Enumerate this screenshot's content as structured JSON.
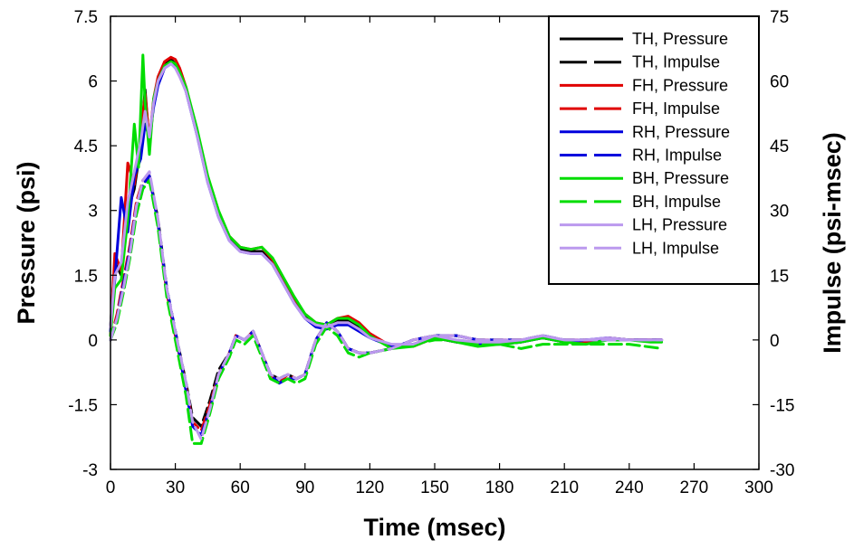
{
  "chart_data": {
    "type": "line",
    "xlabel": "Time (msec)",
    "ylabel": "Pressure (psi)",
    "y2label": "Impulse (psi-msec)",
    "xlim": [
      0,
      300
    ],
    "ylim": [
      -3,
      7.5
    ],
    "y2lim": [
      -30,
      75
    ],
    "xticks": [
      "0",
      "30",
      "60",
      "90",
      "120",
      "150",
      "180",
      "210",
      "240",
      "270",
      "300"
    ],
    "yticks": [
      "-3",
      "-1.5",
      "0",
      "1.5",
      "3",
      "4.5",
      "6",
      "7.5"
    ],
    "y2ticks": [
      "-30",
      "-15",
      "0",
      "15",
      "30",
      "45",
      "60",
      "75"
    ],
    "grid": false,
    "legend_position": "top-right",
    "colors": {
      "TH": "#000000",
      "FH": "#e00000",
      "RH": "#0000dd",
      "BH": "#00dd00",
      "LH": "#bb99ee"
    },
    "series": [
      {
        "name": "TH, Pressure",
        "color": "#000000",
        "dash": false,
        "axis": "left",
        "x": [
          0,
          2,
          5,
          8,
          11,
          14,
          16,
          18,
          20,
          22,
          25,
          28,
          30,
          32,
          35,
          40,
          45,
          50,
          55,
          60,
          65,
          70,
          75,
          80,
          85,
          90,
          95,
          100,
          105,
          110,
          115,
          120,
          130,
          140,
          150,
          160,
          170,
          180,
          190,
          200,
          210,
          220,
          230,
          240,
          250,
          255
        ],
        "y": [
          0.3,
          1.8,
          1.5,
          3.0,
          3.5,
          4.5,
          5.8,
          4.5,
          5.5,
          6.0,
          6.4,
          6.5,
          6.4,
          6.2,
          5.8,
          4.8,
          3.7,
          2.9,
          2.35,
          2.1,
          2.05,
          2.05,
          1.8,
          1.35,
          0.9,
          0.55,
          0.35,
          0.3,
          0.45,
          0.45,
          0.3,
          0.1,
          -0.15,
          -0.15,
          0.05,
          -0.05,
          -0.1,
          -0.1,
          -0.05,
          0.05,
          -0.05,
          -0.05,
          0.05,
          0.0,
          0.0,
          0.0
        ]
      },
      {
        "name": "TH, Impulse",
        "color": "#000000",
        "dash": true,
        "axis": "right",
        "x": [
          0,
          3,
          6,
          9,
          12,
          15,
          18,
          22,
          26,
          30,
          35,
          38,
          42,
          46,
          50,
          55,
          58,
          62,
          66,
          70,
          74,
          78,
          82,
          86,
          90,
          95,
          100,
          105,
          110,
          115,
          120,
          130,
          140,
          150,
          160,
          170,
          180,
          190,
          200,
          210,
          220,
          230,
          240,
          255
        ],
        "y": [
          0,
          5,
          12,
          20,
          30,
          36,
          38,
          28,
          12,
          2,
          -10,
          -18,
          -20,
          -14,
          -7,
          -3,
          1,
          0,
          2,
          -3,
          -8,
          -9,
          -8,
          -9,
          -8,
          0,
          4,
          2,
          -2,
          -3,
          -3,
          -2,
          0,
          1,
          1,
          0,
          0,
          0,
          1,
          0,
          0,
          0,
          0,
          0
        ]
      },
      {
        "name": "FH, Pressure",
        "color": "#e00000",
        "dash": false,
        "axis": "left",
        "x": [
          0,
          2,
          5,
          8,
          11,
          14,
          16,
          18,
          20,
          22,
          25,
          28,
          30,
          32,
          35,
          40,
          45,
          50,
          55,
          60,
          65,
          70,
          75,
          80,
          85,
          90,
          95,
          100,
          105,
          110,
          115,
          120,
          130,
          140,
          150,
          160,
          170,
          180,
          190,
          200,
          210,
          220,
          230,
          240,
          250,
          255
        ],
        "y": [
          0.1,
          2.0,
          1.6,
          4.1,
          3.6,
          4.7,
          5.7,
          4.6,
          5.6,
          6.1,
          6.45,
          6.55,
          6.5,
          6.3,
          5.85,
          4.85,
          3.75,
          2.95,
          2.4,
          2.15,
          2.1,
          2.15,
          1.85,
          1.4,
          0.95,
          0.6,
          0.4,
          0.35,
          0.5,
          0.55,
          0.4,
          0.15,
          -0.15,
          -0.15,
          0.05,
          -0.05,
          -0.1,
          -0.05,
          0.0,
          0.05,
          -0.05,
          -0.05,
          0.05,
          0.0,
          0.0,
          0.0
        ]
      },
      {
        "name": "FH, Impulse",
        "color": "#e00000",
        "dash": true,
        "axis": "right",
        "x": [
          0,
          3,
          6,
          9,
          12,
          15,
          18,
          22,
          26,
          30,
          35,
          38,
          42,
          46,
          50,
          55,
          58,
          62,
          66,
          70,
          74,
          78,
          82,
          86,
          90,
          95,
          100,
          105,
          110,
          115,
          120,
          130,
          140,
          150,
          160,
          170,
          180,
          190,
          200,
          210,
          220,
          230,
          240,
          255
        ],
        "y": [
          0,
          6,
          14,
          22,
          32,
          37,
          38,
          27,
          11,
          1,
          -11,
          -19,
          -21,
          -15,
          -8,
          -3,
          1,
          0,
          2,
          -3,
          -8,
          -10,
          -8,
          -9,
          -8,
          0,
          4,
          2,
          -2,
          -3,
          -3,
          -2,
          0,
          1,
          1,
          0,
          0,
          0,
          1,
          0,
          0,
          0,
          0,
          0
        ]
      },
      {
        "name": "RH, Pressure",
        "color": "#0000dd",
        "dash": false,
        "axis": "left",
        "x": [
          0,
          2,
          5,
          8,
          11,
          14,
          16,
          18,
          20,
          22,
          25,
          28,
          30,
          32,
          35,
          40,
          45,
          50,
          55,
          60,
          65,
          70,
          75,
          80,
          85,
          90,
          95,
          100,
          105,
          110,
          115,
          120,
          130,
          140,
          150,
          160,
          170,
          180,
          190,
          200,
          210,
          220,
          230,
          240,
          250,
          255
        ],
        "y": [
          0.2,
          1.4,
          3.3,
          2.5,
          3.8,
          4.2,
          5.0,
          4.7,
          5.4,
          5.9,
          6.3,
          6.4,
          6.35,
          6.15,
          5.75,
          4.75,
          3.65,
          2.85,
          2.3,
          2.05,
          2.0,
          2.0,
          1.75,
          1.3,
          0.85,
          0.5,
          0.3,
          0.25,
          0.35,
          0.35,
          0.2,
          0.05,
          -0.15,
          -0.1,
          0.05,
          -0.05,
          -0.1,
          -0.1,
          -0.05,
          0.05,
          -0.05,
          0.0,
          0.05,
          0.0,
          0.0,
          0.0
        ]
      },
      {
        "name": "RH, Impulse",
        "color": "#0000dd",
        "dash": true,
        "axis": "right",
        "x": [
          0,
          3,
          6,
          9,
          12,
          15,
          18,
          22,
          26,
          30,
          35,
          38,
          42,
          46,
          50,
          55,
          58,
          62,
          66,
          70,
          74,
          78,
          82,
          86,
          90,
          95,
          100,
          105,
          110,
          115,
          120,
          130,
          140,
          150,
          160,
          170,
          180,
          190,
          200,
          210,
          220,
          230,
          240,
          255
        ],
        "y": [
          0,
          5,
          13,
          21,
          31,
          36,
          38,
          27,
          12,
          2,
          -12,
          -20,
          -22,
          -16,
          -8,
          -3,
          1,
          0,
          2,
          -3,
          -8,
          -10,
          -9,
          -9,
          -8,
          0,
          4,
          2,
          -2,
          -3,
          -3,
          -2,
          0,
          1,
          1,
          0,
          0,
          0,
          1,
          0,
          0,
          0,
          0,
          0
        ]
      },
      {
        "name": "BH, Pressure",
        "color": "#00dd00",
        "dash": false,
        "axis": "left",
        "x": [
          0,
          2,
          5,
          8,
          11,
          13,
          15,
          16,
          18,
          20,
          22,
          25,
          28,
          30,
          32,
          35,
          40,
          45,
          50,
          55,
          60,
          65,
          70,
          75,
          80,
          85,
          90,
          95,
          100,
          105,
          110,
          115,
          120,
          130,
          140,
          150,
          160,
          170,
          180,
          190,
          200,
          210,
          220,
          230,
          240,
          250,
          255
        ],
        "y": [
          0.1,
          1.2,
          1.4,
          2.8,
          5.0,
          4.0,
          6.6,
          5.5,
          4.3,
          5.6,
          6.0,
          6.35,
          6.45,
          6.4,
          6.2,
          5.85,
          4.9,
          3.8,
          3.0,
          2.4,
          2.15,
          2.1,
          2.15,
          1.9,
          1.45,
          1.0,
          0.6,
          0.4,
          0.35,
          0.5,
          0.5,
          0.35,
          0.1,
          -0.2,
          -0.15,
          0.05,
          -0.05,
          -0.15,
          -0.1,
          -0.05,
          0.05,
          -0.05,
          -0.1,
          0.0,
          0.0,
          -0.05,
          -0.05
        ]
      },
      {
        "name": "BH, Impulse",
        "color": "#00dd00",
        "dash": true,
        "axis": "right",
        "x": [
          0,
          3,
          6,
          9,
          12,
          15,
          18,
          22,
          26,
          30,
          35,
          38,
          42,
          46,
          50,
          55,
          58,
          62,
          66,
          70,
          74,
          78,
          82,
          86,
          90,
          95,
          100,
          105,
          110,
          115,
          120,
          130,
          140,
          150,
          160,
          170,
          180,
          190,
          200,
          210,
          220,
          230,
          240,
          255
        ],
        "y": [
          0,
          4,
          11,
          19,
          29,
          35,
          37,
          26,
          10,
          0,
          -13,
          -24,
          -24,
          -17,
          -9,
          -4,
          0,
          -1,
          1,
          -4,
          -9,
          -10,
          -9,
          -10,
          -9,
          -1,
          3,
          1,
          -3,
          -4,
          -3,
          -2,
          -1,
          0,
          0,
          -1,
          -1,
          -2,
          -1,
          -1,
          -1,
          -1,
          -1,
          -2
        ]
      },
      {
        "name": "LH, Pressure",
        "color": "#bb99ee",
        "dash": false,
        "axis": "left",
        "x": [
          0,
          2,
          5,
          8,
          11,
          14,
          16,
          18,
          20,
          22,
          25,
          28,
          30,
          32,
          35,
          40,
          45,
          50,
          55,
          60,
          65,
          70,
          75,
          80,
          85,
          90,
          95,
          100,
          105,
          110,
          115,
          120,
          130,
          140,
          150,
          160,
          170,
          180,
          190,
          200,
          210,
          220,
          230,
          240,
          250,
          255
        ],
        "y": [
          0.3,
          1.5,
          1.8,
          3.2,
          3.9,
          4.6,
          5.3,
          4.7,
          5.5,
          6.0,
          6.3,
          6.4,
          6.3,
          6.1,
          5.75,
          4.75,
          3.65,
          2.85,
          2.3,
          2.05,
          2.0,
          2.0,
          1.75,
          1.3,
          0.85,
          0.5,
          0.35,
          0.3,
          0.4,
          0.4,
          0.25,
          0.05,
          -0.1,
          -0.1,
          0.1,
          0.0,
          -0.05,
          -0.05,
          0.0,
          0.1,
          0.0,
          0.0,
          0.05,
          0.0,
          0.0,
          0.0
        ]
      },
      {
        "name": "LH, Impulse",
        "color": "#bb99ee",
        "dash": true,
        "axis": "right",
        "x": [
          0,
          3,
          6,
          9,
          12,
          15,
          18,
          22,
          26,
          30,
          35,
          38,
          42,
          46,
          50,
          55,
          58,
          62,
          66,
          70,
          74,
          78,
          82,
          86,
          90,
          95,
          100,
          105,
          110,
          115,
          120,
          130,
          140,
          150,
          160,
          170,
          180,
          190,
          200,
          210,
          220,
          230,
          240,
          255
        ],
        "y": [
          0,
          5,
          12,
          20,
          31,
          37,
          39,
          28,
          12,
          2,
          -10,
          -19,
          -23,
          -16,
          -8,
          -3,
          1,
          0,
          2,
          -3,
          -8,
          -9,
          -8,
          -9,
          -8,
          0,
          4,
          2,
          -2,
          -3,
          -3,
          -2,
          0,
          1,
          1,
          0,
          0,
          0,
          1,
          0,
          0,
          0,
          0,
          0
        ]
      }
    ]
  }
}
